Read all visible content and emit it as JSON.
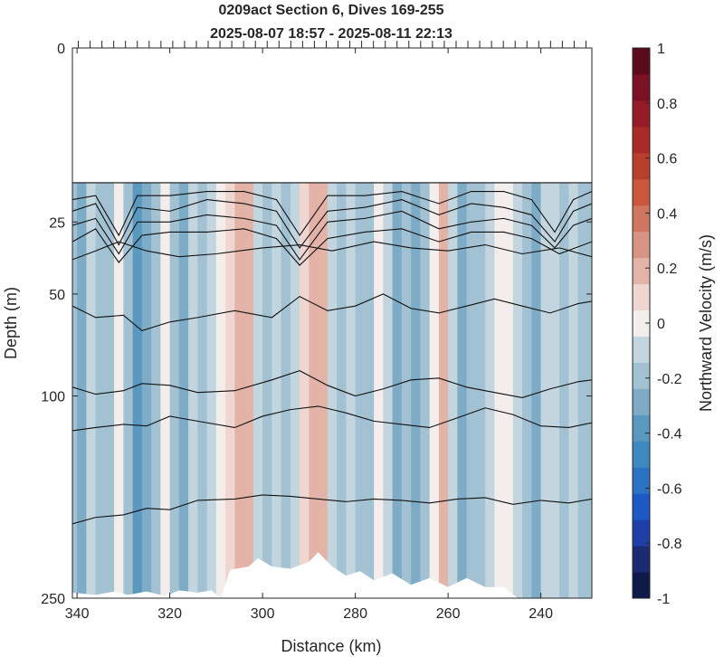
{
  "chart_data": {
    "type": "heatmap",
    "title": "0209act Section 6, Dives 169-255",
    "subtitle": "2025-08-07 18:57 - 2025-08-11 22:13",
    "xlabel": "Distance (km)",
    "ylabel": "Depth (m)",
    "xlim": [
      341,
      229
    ],
    "ylim": [
      0,
      250
    ],
    "x_reversed": true,
    "y_reversed": true,
    "y_scale": "sqrt",
    "data_top_depth": 15,
    "x_ticks": [
      340,
      320,
      300,
      280,
      260,
      240
    ],
    "y_ticks": [
      0,
      25,
      50,
      100,
      250
    ],
    "colorbar": {
      "label": "Northward Velocity (m/s)",
      "range": [
        -1,
        1
      ],
      "ticks": [
        "1",
        "0.8",
        "0.6",
        "0.4",
        "0.2",
        "0",
        "-0.2",
        "-0.4",
        "-0.6",
        "-0.8",
        "-1"
      ],
      "colors": [
        "#0d1a4a",
        "#1b2b72",
        "#1d3fa6",
        "#1e58c4",
        "#2a73c2",
        "#3d89c0",
        "#5a98c0",
        "#7eacc6",
        "#a2c1d2",
        "#c3d5de",
        "#f3eeec",
        "#f0d6d0",
        "#e2b3a6",
        "#d79384",
        "#ce7660",
        "#c9583f",
        "#b6402c",
        "#a82b28",
        "#951b27",
        "#7a1124",
        "#5c0b1c"
      ]
    },
    "columns": [
      {
        "x": 341,
        "v": -0.2
      },
      {
        "x": 339,
        "v": -0.3
      },
      {
        "x": 337,
        "v": -0.1
      },
      {
        "x": 335,
        "v": -0.25
      },
      {
        "x": 333,
        "v": -0.2
      },
      {
        "x": 331,
        "v": -0.05
      },
      {
        "x": 329,
        "v": -0.2
      },
      {
        "x": 327,
        "v": -0.45
      },
      {
        "x": 325,
        "v": -0.35
      },
      {
        "x": 323,
        "v": -0.2
      },
      {
        "x": 321,
        "v": -0.05
      },
      {
        "x": 319,
        "v": -0.25
      },
      {
        "x": 317,
        "v": -0.3
      },
      {
        "x": 315,
        "v": -0.15
      },
      {
        "x": 313,
        "v": -0.25
      },
      {
        "x": 311,
        "v": -0.1
      },
      {
        "x": 309,
        "v": -0.05
      },
      {
        "x": 307,
        "v": 0.12
      },
      {
        "x": 305,
        "v": 0.2
      },
      {
        "x": 303,
        "v": 0.15
      },
      {
        "x": 301,
        "v": -0.1
      },
      {
        "x": 299,
        "v": -0.25
      },
      {
        "x": 297,
        "v": -0.15
      },
      {
        "x": 295,
        "v": -0.2
      },
      {
        "x": 293,
        "v": -0.1
      },
      {
        "x": 291,
        "v": 0.05
      },
      {
        "x": 289,
        "v": 0.2
      },
      {
        "x": 287,
        "v": 0.15
      },
      {
        "x": 285,
        "v": -0.1
      },
      {
        "x": 283,
        "v": -0.2
      },
      {
        "x": 281,
        "v": -0.1
      },
      {
        "x": 279,
        "v": -0.25
      },
      {
        "x": 277,
        "v": -0.2
      },
      {
        "x": 275,
        "v": 0.0
      },
      {
        "x": 273,
        "v": -0.15
      },
      {
        "x": 271,
        "v": -0.3
      },
      {
        "x": 269,
        "v": -0.2
      },
      {
        "x": 267,
        "v": -0.35
      },
      {
        "x": 265,
        "v": -0.2
      },
      {
        "x": 263,
        "v": -0.05
      },
      {
        "x": 261,
        "v": 0.18
      },
      {
        "x": 259,
        "v": -0.1
      },
      {
        "x": 257,
        "v": -0.3
      },
      {
        "x": 255,
        "v": -0.2
      },
      {
        "x": 253,
        "v": -0.25
      },
      {
        "x": 251,
        "v": -0.15
      },
      {
        "x": 249,
        "v": -0.05
      },
      {
        "x": 247,
        "v": 0.0
      },
      {
        "x": 245,
        "v": -0.1
      },
      {
        "x": 243,
        "v": -0.2
      },
      {
        "x": 241,
        "v": -0.35
      },
      {
        "x": 239,
        "v": -0.15
      },
      {
        "x": 237,
        "v": -0.1
      },
      {
        "x": 235,
        "v": -0.2
      },
      {
        "x": 233,
        "v": -0.15
      },
      {
        "x": 231,
        "v": -0.25
      },
      {
        "x": 229,
        "v": -0.2
      }
    ],
    "contours": [
      {
        "x": [
          341,
          335,
          330,
          326,
          318,
          310,
          300,
          292,
          285,
          275,
          265,
          255,
          245,
          238,
          232,
          229
        ],
        "depth": [
          15,
          15,
          15,
          15,
          15,
          15,
          15,
          15,
          15,
          15,
          15,
          15,
          15,
          15,
          15,
          15
        ]
      },
      {
        "x": [
          341,
          336,
          331,
          327,
          320,
          312,
          304,
          297,
          292,
          286,
          278,
          270,
          262,
          255,
          248,
          242,
          237,
          233,
          229
        ],
        "depth": [
          19,
          18,
          29,
          18,
          18,
          17,
          17,
          19,
          29,
          18,
          18,
          17,
          20,
          17,
          17,
          19,
          28,
          19,
          17
        ]
      },
      {
        "x": [
          341,
          336,
          331,
          327,
          320,
          312,
          304,
          297,
          292,
          286,
          278,
          270,
          262,
          255,
          248,
          242,
          237,
          233,
          229
        ],
        "depth": [
          22,
          20,
          32,
          21,
          22,
          19,
          20,
          22,
          33,
          22,
          21,
          19,
          23,
          20,
          21,
          23,
          31,
          22,
          20
        ]
      },
      {
        "x": [
          341,
          336,
          331,
          327,
          320,
          312,
          304,
          297,
          292,
          286,
          278,
          270,
          262,
          255,
          248,
          242,
          237,
          233,
          229
        ],
        "depth": [
          26,
          24,
          35,
          25,
          25,
          23,
          24,
          26,
          37,
          25,
          24,
          22,
          27,
          25,
          24,
          26,
          33,
          26,
          24
        ]
      },
      {
        "x": [
          341,
          336,
          331,
          326,
          320,
          312,
          304,
          297,
          292,
          286,
          278,
          270,
          262,
          255,
          248,
          242,
          236,
          229
        ],
        "depth": [
          31,
          27,
          38,
          29,
          28,
          28,
          27,
          30,
          39,
          30,
          28,
          27,
          31,
          28,
          28,
          30,
          35,
          31
        ]
      },
      {
        "x": [
          341,
          336,
          331,
          325,
          318,
          310,
          300,
          292,
          285,
          276,
          268,
          260,
          252,
          244,
          236,
          229
        ],
        "depth": [
          37,
          34,
          31,
          34,
          36,
          35,
          33,
          32,
          34,
          31,
          33,
          34,
          32,
          35,
          33,
          36
        ]
      },
      {
        "x": [
          341,
          336,
          330,
          326,
          320,
          314,
          306,
          298,
          292,
          286,
          280,
          274,
          268,
          262,
          256,
          250,
          244,
          238,
          232,
          229
        ],
        "depth": [
          55,
          60,
          59,
          66,
          62,
          60,
          57,
          60,
          51,
          57,
          55,
          50,
          56,
          58,
          55,
          52,
          55,
          58,
          54,
          53
        ]
      },
      {
        "x": [
          341,
          336,
          330,
          326,
          320,
          314,
          306,
          298,
          292,
          286,
          280,
          274,
          268,
          262,
          256,
          250,
          244,
          238,
          232,
          229
        ],
        "depth": [
          95,
          99,
          97,
          93,
          94,
          98,
          97,
          91,
          86,
          94,
          100,
          96,
          91,
          90,
          95,
          98,
          101,
          96,
          92,
          91
        ]
      },
      {
        "x": [
          341,
          336,
          330,
          325,
          320,
          314,
          306,
          300,
          294,
          288,
          282,
          276,
          270,
          264,
          258,
          252,
          246,
          240,
          234,
          229
        ],
        "depth": [
          121,
          119,
          117,
          118,
          112,
          115,
          119,
          112,
          108,
          106,
          110,
          115,
          117,
          119,
          113,
          107,
          111,
          118,
          119,
          116
        ]
      },
      {
        "x": [
          341,
          336,
          330,
          325,
          320,
          314,
          306,
          300,
          294,
          288,
          282,
          276,
          270,
          264,
          258,
          252,
          246,
          240,
          234,
          229
        ],
        "depth": [
          187,
          182,
          180,
          175,
          176,
          169,
          168,
          165,
          166,
          168,
          170,
          168,
          169,
          171,
          168,
          167,
          172,
          169,
          171,
          168
        ]
      }
    ],
    "bottom_mask": [
      {
        "x": 341,
        "depth": 245
      },
      {
        "x": 336,
        "depth": 247
      },
      {
        "x": 332,
        "depth": 244
      },
      {
        "x": 329,
        "depth": 247
      },
      {
        "x": 325,
        "depth": 244
      },
      {
        "x": 321,
        "depth": 248
      },
      {
        "x": 318,
        "depth": 243
      },
      {
        "x": 314,
        "depth": 245
      },
      {
        "x": 311,
        "depth": 243
      },
      {
        "x": 309,
        "depth": 250
      },
      {
        "x": 307,
        "depth": 225
      },
      {
        "x": 303,
        "depth": 222
      },
      {
        "x": 301,
        "depth": 215
      },
      {
        "x": 298,
        "depth": 222
      },
      {
        "x": 294,
        "depth": 224
      },
      {
        "x": 290,
        "depth": 218
      },
      {
        "x": 288,
        "depth": 210
      },
      {
        "x": 285,
        "depth": 222
      },
      {
        "x": 282,
        "depth": 230
      },
      {
        "x": 279,
        "depth": 226
      },
      {
        "x": 276,
        "depth": 234
      },
      {
        "x": 272,
        "depth": 228
      },
      {
        "x": 268,
        "depth": 238
      },
      {
        "x": 264,
        "depth": 232
      },
      {
        "x": 260,
        "depth": 240
      },
      {
        "x": 256,
        "depth": 232
      },
      {
        "x": 252,
        "depth": 240
      },
      {
        "x": 248,
        "depth": 240
      },
      {
        "x": 245,
        "depth": 250
      },
      {
        "x": 229,
        "depth": 250
      }
    ],
    "dive_ticks_count": 44
  }
}
